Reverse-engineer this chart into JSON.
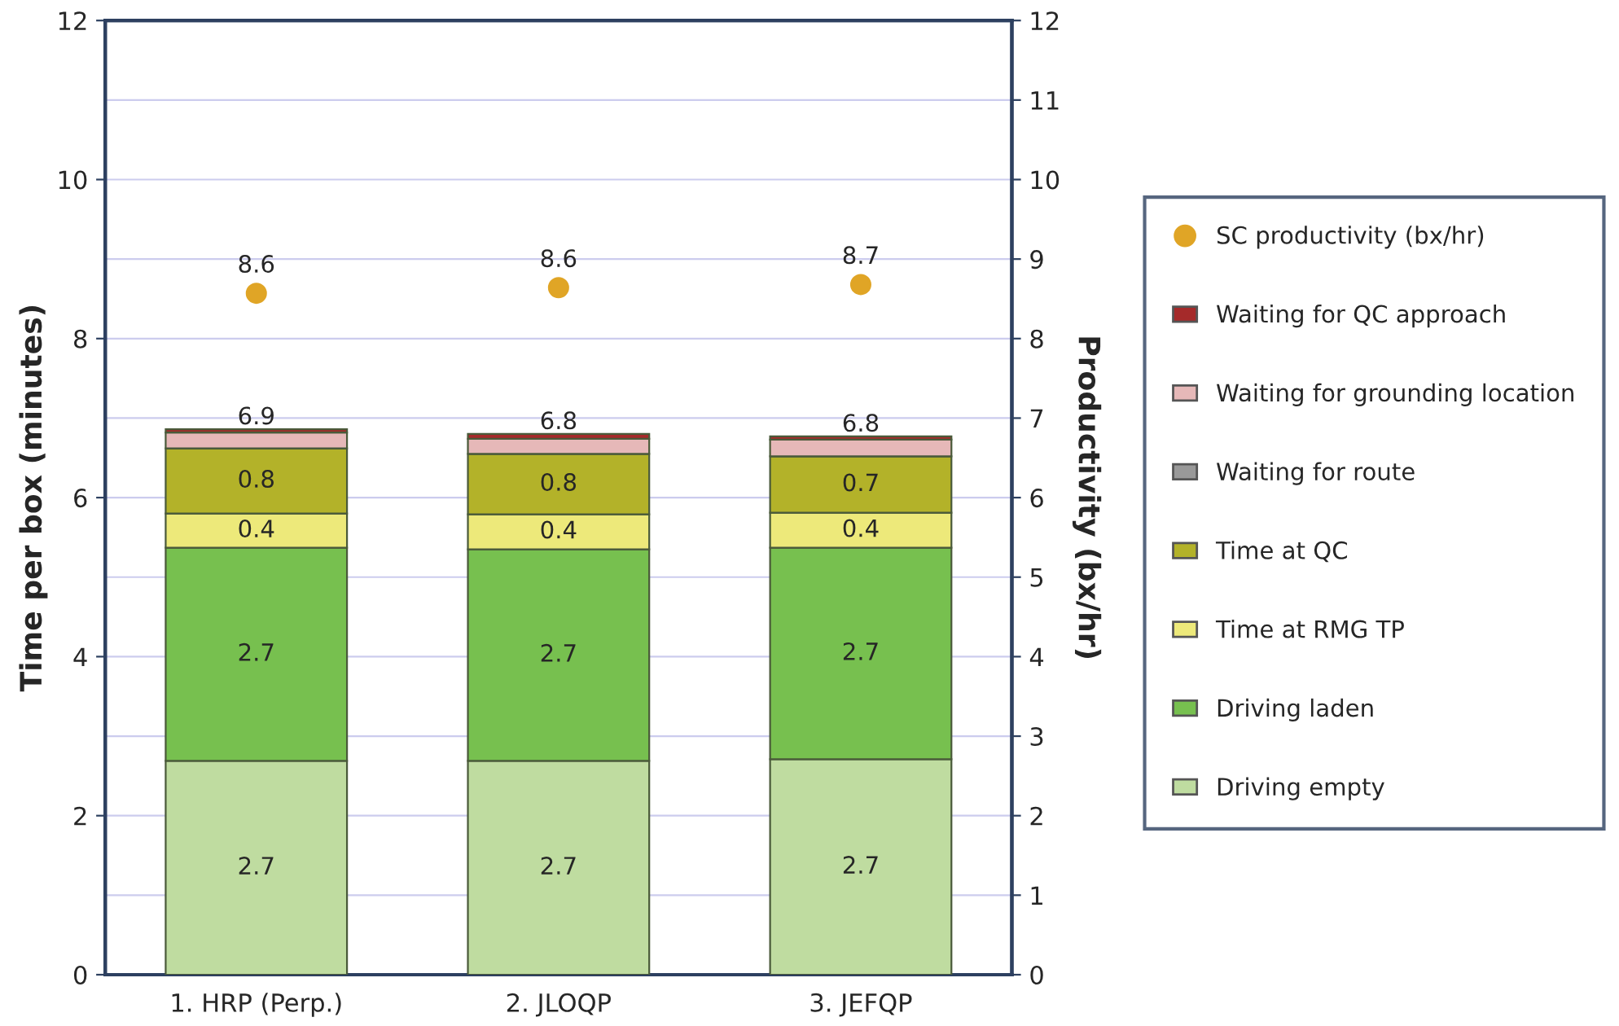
{
  "chart_data": {
    "type": "bar",
    "stacked": true,
    "ylabel": "Time per box (minutes)",
    "y2label": "Productivity (bx/hr)",
    "categories": [
      "1. HRP (Perp.)",
      "2. JLOQP",
      "3. JEFQP"
    ],
    "ylim": [
      0,
      12
    ],
    "yticks": [
      0,
      2,
      4,
      6,
      8,
      10,
      12
    ],
    "y2lim": [
      0,
      12
    ],
    "y2ticks": [
      0,
      1,
      2,
      3,
      4,
      5,
      6,
      7,
      8,
      9,
      10,
      11,
      12
    ],
    "grid": "y2",
    "legend": "right",
    "totals": [
      "6.9",
      "6.8",
      "6.8"
    ],
    "series": [
      {
        "name": "Driving empty",
        "color": "#bfdca0",
        "values": [
          2.69,
          2.69,
          2.71
        ],
        "value_labels": [
          "2.7",
          "2.7",
          "2.7"
        ]
      },
      {
        "name": "Driving laden",
        "color": "#77c04f",
        "values": [
          2.68,
          2.66,
          2.66
        ],
        "value_labels": [
          "2.7",
          "2.7",
          "2.7"
        ]
      },
      {
        "name": "Time at RMG TP",
        "color": "#ede97a",
        "values": [
          0.43,
          0.44,
          0.44
        ],
        "value_labels": [
          "0.4",
          "0.4",
          "0.4"
        ]
      },
      {
        "name": "Time at QC",
        "color": "#b3b229",
        "values": [
          0.82,
          0.76,
          0.71
        ],
        "value_labels": [
          "0.8",
          "0.8",
          "0.7"
        ]
      },
      {
        "name": "Waiting for route",
        "color": "#999999",
        "values": [
          0,
          0,
          0
        ]
      },
      {
        "name": "Waiting for grounding location",
        "color": "#e6b8b8",
        "values": [
          0.2,
          0.19,
          0.21
        ]
      },
      {
        "name": "Waiting for QC approach",
        "color": "#a52a2a",
        "values": [
          0.04,
          0.06,
          0.04
        ]
      },
      {
        "name": "SC productivity (bx/hr)",
        "type": "scatter",
        "axis": "y2",
        "marker": "circle",
        "color": "#e0a526",
        "values": [
          8.57,
          8.64,
          8.68
        ],
        "value_labels": [
          "8.6",
          "8.6",
          "8.7"
        ]
      }
    ]
  }
}
